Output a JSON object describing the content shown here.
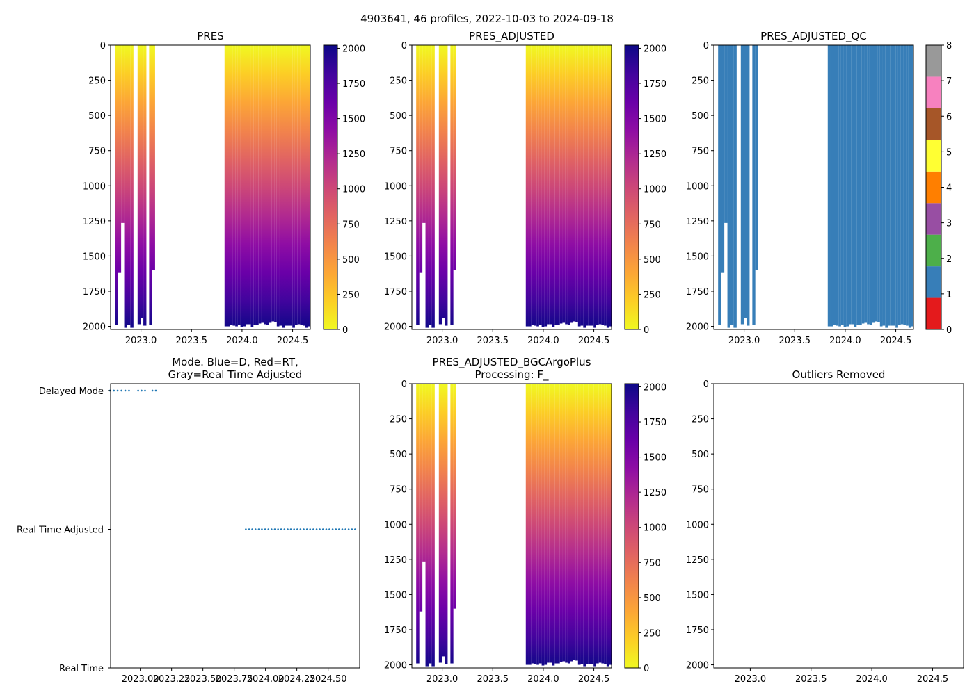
{
  "chart_data": {
    "type": "heatmap",
    "suptitle": "4903641, 46 profiles, 2022-10-03 to 2024-09-18",
    "profiles": {
      "dates": [
        2022.758,
        2022.789,
        2022.819,
        2022.85,
        2022.88,
        2022.91,
        2022.983,
        2023.01,
        2023.038,
        2023.097,
        2023.124,
        2023.843,
        2023.869,
        2023.894,
        2023.92,
        2023.946,
        2023.971,
        2023.997,
        2024.023,
        2024.048,
        2024.074,
        2024.1,
        2024.125,
        2024.151,
        2024.177,
        2024.202,
        2024.228,
        2024.254,
        2024.279,
        2024.305,
        2024.331,
        2024.356,
        2024.382,
        2024.408,
        2024.433,
        2024.459,
        2024.485,
        2024.51,
        2024.536,
        2024.562,
        2024.587,
        2024.613,
        2024.639,
        2024.664,
        2024.69,
        2024.715
      ],
      "max_pressure": [
        1990,
        1620,
        1265,
        2010,
        1990,
        2010,
        1985,
        1940,
        1995,
        1990,
        1600,
        2000,
        2000,
        1990,
        1995,
        2000,
        1990,
        2005,
        2000,
        1985,
        1985,
        2005,
        1990,
        1990,
        1980,
        1975,
        1985,
        1990,
        1975,
        1965,
        1970,
        2000,
        1995,
        2010,
        1995,
        1995,
        1995,
        2010,
        1990,
        1985,
        1990,
        1995,
        2010,
        2000,
        2020,
        1995
      ],
      "mode": [
        "D",
        "D",
        "D",
        "D",
        "D",
        "D",
        "D",
        "D",
        "D",
        "D",
        "D",
        "A",
        "A",
        "A",
        "A",
        "A",
        "A",
        "A",
        "A",
        "A",
        "A",
        "A",
        "A",
        "A",
        "A",
        "A",
        "A",
        "A",
        "A",
        "A",
        "A",
        "A",
        "A",
        "A",
        "A",
        "A",
        "A",
        "A",
        "A",
        "A",
        "A",
        "A",
        "A",
        "A",
        "A",
        "A"
      ],
      "qc": 1
    },
    "ylim": [
      2022,
      0
    ],
    "y_ticks": [
      0,
      250,
      500,
      750,
      1000,
      1250,
      1500,
      1750,
      2000
    ],
    "y_tick_labels": [
      "0",
      "250",
      "500",
      "750",
      "1000",
      "1250",
      "1500",
      "1750",
      "2000"
    ],
    "xlim": [
      2022.7,
      2024.675
    ],
    "x_ticks": [
      2023.0,
      2023.5,
      2024.0,
      2024.5
    ],
    "x_tick_labels": [
      "2023.0",
      "2023.5",
      "2024.0",
      "2024.5"
    ],
    "colorbar_range": [
      0,
      2022
    ],
    "colorbar_ticks": [
      0,
      250,
      500,
      750,
      1000,
      1250,
      1500,
      1750,
      2000
    ],
    "colorbar_tick_labels": [
      "0",
      "250",
      "500",
      "750",
      "1000",
      "1250",
      "1500",
      "1750",
      "2000"
    ],
    "colormap": [
      "#f0f921",
      "#fcce25",
      "#fca636",
      "#f2844b",
      "#e16462",
      "#cc4778",
      "#b12a90",
      "#8f0da4",
      "#6a00a8",
      "#41049d",
      "#0d0887"
    ],
    "panels": [
      {
        "title": "PRES",
        "kind": "pressure"
      },
      {
        "title": "PRES_ADJUSTED",
        "kind": "pressure"
      },
      {
        "title": "PRES_ADJUSTED_QC",
        "kind": "qc"
      },
      {
        "title_lines": [
          "Mode. Blue=D, Red=RT,",
          "Gray=Real Time Adjusted"
        ],
        "kind": "mode"
      },
      {
        "title_lines": [
          "PRES_ADJUSTED_BGCArgoPlus",
          "Processing: F_"
        ],
        "kind": "pressure"
      },
      {
        "title": "Outliers Removed",
        "kind": "empty"
      }
    ],
    "qc_colorbar": {
      "range": [
        0,
        8
      ],
      "colors": [
        "#e41a1c",
        "#377eb8",
        "#4daf4a",
        "#984ea3",
        "#ff7f00",
        "#ffff33",
        "#a65628",
        "#f781bf",
        "#999999"
      ],
      "tick_labels": [
        "0",
        "1",
        "2",
        "3",
        "4",
        "5",
        "6",
        "7",
        "8"
      ]
    },
    "mode_axis": {
      "xlim": [
        2022.763,
        2024.752
      ],
      "x_ticks": [
        2023.0,
        2023.25,
        2023.5,
        2023.75,
        2024.0,
        2024.25,
        2024.5
      ],
      "x_tick_labels": [
        "2023.00",
        "2023.25",
        "2023.50",
        "2023.75",
        "2024.00",
        "2024.25",
        "2024.50"
      ],
      "ylim": [
        0,
        2.05
      ],
      "y_ticks": [
        0,
        1,
        2
      ],
      "y_tick_labels": [
        "Real Time",
        "Real Time Adjusted",
        "Delayed Mode"
      ],
      "dot_color": "#1f77b4"
    },
    "colors": {
      "qc_good": "#377eb8"
    }
  }
}
